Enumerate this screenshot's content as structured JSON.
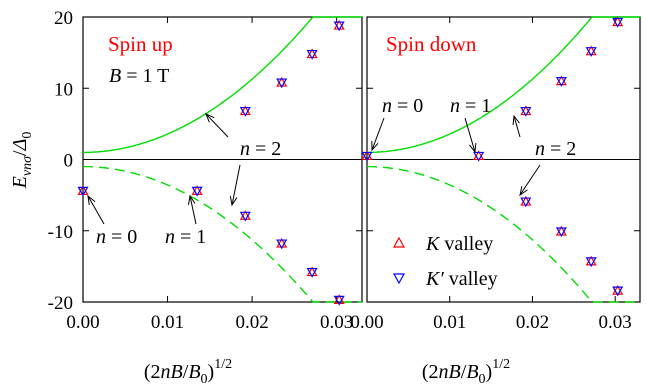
{
  "chart_data": [
    {
      "type": "scatter",
      "panel": "spin-up",
      "title": "Spin up",
      "annotation_field": "B = 1 T",
      "xlabel": "(2nB/B0)^1/2",
      "ylabel": "E_νnσ/Δ0",
      "xlim": [
        0,
        0.033
      ],
      "ylim": [
        -20,
        20
      ],
      "xticks": [
        "0.00",
        "0.01",
        "0.02",
        "0.03"
      ],
      "yticks": [
        "20",
        "10",
        "0",
        "-10",
        "-20"
      ],
      "series": [
        {
          "name": "K valley",
          "marker": "triangle-up",
          "color": "#ff0000",
          "points": [
            [
              0.0,
              -4.4
            ],
            [
              0.0135,
              -4.4
            ],
            [
              0.0192,
              6.8
            ],
            [
              0.0192,
              -7.9
            ],
            [
              0.0235,
              10.8
            ],
            [
              0.0235,
              -11.8
            ],
            [
              0.0271,
              14.8
            ],
            [
              0.0271,
              -15.8
            ],
            [
              0.0303,
              18.8
            ],
            [
              0.0303,
              -19.7
            ]
          ]
        },
        {
          "name": "K′ valley",
          "marker": "triangle-down",
          "color": "#0000ff",
          "points": [
            [
              0.0,
              -4.4
            ],
            [
              0.0135,
              -4.4
            ],
            [
              0.0192,
              6.8
            ],
            [
              0.0192,
              -7.9
            ],
            [
              0.0235,
              10.8
            ],
            [
              0.0235,
              -11.8
            ],
            [
              0.0271,
              14.8
            ],
            [
              0.0271,
              -15.8
            ],
            [
              0.0303,
              18.8
            ],
            [
              0.0303,
              -19.7
            ]
          ]
        }
      ],
      "curves": [
        {
          "style": "solid",
          "color": "#00dd00",
          "x0": 0,
          "y0": 1.0,
          "k": 25700,
          "sign": 1
        },
        {
          "style": "dashed",
          "color": "#00dd00",
          "x0": 0,
          "y0": -1.0,
          "k": 25700,
          "sign": -1
        }
      ],
      "labels": [
        {
          "text": "n = 0",
          "x": 0.0,
          "y": -4.4
        },
        {
          "text": "n = 1",
          "x": 0.0135,
          "y": -4.4
        },
        {
          "text": "n = 2",
          "x": 0.0192,
          "y": 6.8
        },
        {
          "text": "",
          "x": 0.0192,
          "y": -7.9
        }
      ]
    },
    {
      "type": "scatter",
      "panel": "spin-down",
      "title": "Spin down",
      "xlabel": "(2nB/B0)^1/2",
      "xlim": [
        0,
        0.033
      ],
      "ylim": [
        -20,
        20
      ],
      "xticks": [
        "0.00",
        "0.01",
        "0.02",
        "0.03"
      ],
      "legend": [
        "K valley",
        "K′ valley"
      ],
      "series": [
        {
          "name": "K valley",
          "marker": "triangle-up",
          "color": "#ff0000",
          "points": [
            [
              0.0,
              0.5
            ],
            [
              0.0135,
              0.5
            ],
            [
              0.0192,
              6.8
            ],
            [
              0.0192,
              -5.9
            ],
            [
              0.0235,
              11.0
            ],
            [
              0.0235,
              -10.1
            ],
            [
              0.0271,
              15.2
            ],
            [
              0.0271,
              -14.3
            ],
            [
              0.0303,
              19.3
            ],
            [
              0.0303,
              -18.4
            ]
          ]
        },
        {
          "name": "K′ valley",
          "marker": "triangle-down",
          "color": "#0000ff",
          "points": [
            [
              0.0,
              0.5
            ],
            [
              0.0135,
              0.5
            ],
            [
              0.0192,
              6.8
            ],
            [
              0.0192,
              -5.9
            ],
            [
              0.0235,
              11.0
            ],
            [
              0.0235,
              -10.1
            ],
            [
              0.0271,
              15.2
            ],
            [
              0.0271,
              -14.3
            ],
            [
              0.0303,
              19.3
            ],
            [
              0.0303,
              -18.4
            ]
          ]
        }
      ],
      "curves": [
        {
          "style": "solid",
          "color": "#00dd00",
          "x0": 0,
          "y0": 1.0,
          "k": 25700,
          "sign": 1
        },
        {
          "style": "dashed",
          "color": "#00dd00",
          "x0": 0,
          "y0": -1.0,
          "k": 25700,
          "sign": -1
        }
      ],
      "labels": [
        {
          "text": "n = 0",
          "x": 0.0,
          "y": 0.5
        },
        {
          "text": "n = 1",
          "x": 0.0135,
          "y": 0.5
        },
        {
          "text": "n = 2",
          "x": 0.0192,
          "y": 6.8
        },
        {
          "text": "",
          "x": 0.0192,
          "y": -5.9
        }
      ]
    }
  ]
}
